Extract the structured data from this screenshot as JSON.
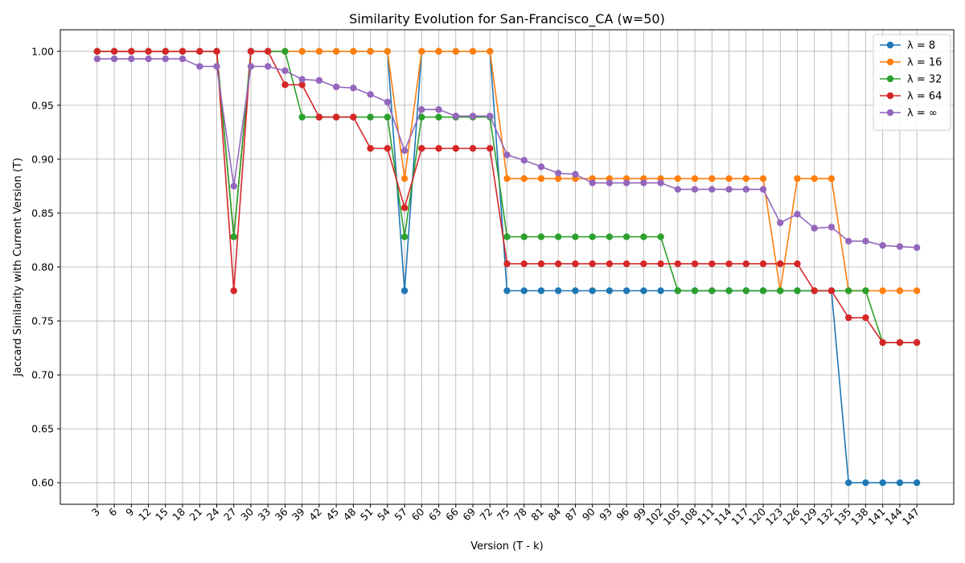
{
  "chart_data": {
    "type": "line",
    "title": "Similarity Evolution for San-Francisco_CA (w=50)",
    "xlabel": "Version (T - k)",
    "ylabel": "Jaccard Similarity with Current Version (T)",
    "grid": true,
    "legend_position": "top-right",
    "ylim": [
      0.58,
      1.02
    ],
    "yticks": [
      0.6,
      0.65,
      0.7,
      0.75,
      0.8,
      0.85,
      0.9,
      0.95,
      1.0
    ],
    "x": [
      3,
      6,
      9,
      12,
      15,
      18,
      21,
      24,
      27,
      30,
      33,
      36,
      39,
      42,
      45,
      48,
      51,
      54,
      57,
      60,
      63,
      66,
      69,
      72,
      75,
      78,
      81,
      84,
      87,
      90,
      93,
      96,
      99,
      102,
      105,
      108,
      111,
      114,
      117,
      120,
      123,
      126,
      129,
      132,
      135,
      138,
      141,
      144,
      147
    ],
    "series": [
      {
        "name": "λ = 8",
        "color": "#1f77b4",
        "values": [
          1.0,
          1.0,
          1.0,
          1.0,
          1.0,
          1.0,
          1.0,
          1.0,
          0.828,
          1.0,
          1.0,
          1.0,
          1.0,
          1.0,
          1.0,
          1.0,
          1.0,
          1.0,
          0.778,
          1.0,
          1.0,
          1.0,
          1.0,
          1.0,
          0.778,
          0.778,
          0.778,
          0.778,
          0.778,
          0.778,
          0.778,
          0.778,
          0.778,
          0.778,
          0.778,
          0.778,
          0.778,
          0.778,
          0.778,
          0.778,
          0.778,
          0.778,
          0.778,
          0.778,
          0.6,
          0.6,
          0.6,
          0.6,
          0.6
        ]
      },
      {
        "name": "λ = 16",
        "color": "#ff7f0e",
        "values": [
          1.0,
          1.0,
          1.0,
          1.0,
          1.0,
          1.0,
          1.0,
          1.0,
          0.828,
          1.0,
          1.0,
          1.0,
          1.0,
          1.0,
          1.0,
          1.0,
          1.0,
          1.0,
          0.882,
          1.0,
          1.0,
          1.0,
          1.0,
          1.0,
          0.882,
          0.882,
          0.882,
          0.882,
          0.882,
          0.882,
          0.882,
          0.882,
          0.882,
          0.882,
          0.882,
          0.882,
          0.882,
          0.882,
          0.882,
          0.882,
          0.778,
          0.882,
          0.882,
          0.882,
          0.778,
          0.778,
          0.778,
          0.778,
          0.778
        ]
      },
      {
        "name": "λ = 32",
        "color": "#2ca02c",
        "values": [
          1.0,
          1.0,
          1.0,
          1.0,
          1.0,
          1.0,
          1.0,
          1.0,
          0.828,
          1.0,
          1.0,
          1.0,
          0.939,
          0.939,
          0.939,
          0.939,
          0.939,
          0.939,
          0.828,
          0.939,
          0.939,
          0.939,
          0.939,
          0.939,
          0.828,
          0.828,
          0.828,
          0.828,
          0.828,
          0.828,
          0.828,
          0.828,
          0.828,
          0.828,
          0.778,
          0.778,
          0.778,
          0.778,
          0.778,
          0.778,
          0.778,
          0.778,
          0.778,
          0.778,
          0.778,
          0.778,
          0.73,
          0.73,
          0.73
        ]
      },
      {
        "name": "λ = 64",
        "color": "#d62728",
        "values": [
          1.0,
          1.0,
          1.0,
          1.0,
          1.0,
          1.0,
          1.0,
          1.0,
          0.778,
          1.0,
          1.0,
          0.969,
          0.969,
          0.939,
          0.939,
          0.939,
          0.91,
          0.91,
          0.855,
          0.91,
          0.91,
          0.91,
          0.91,
          0.91,
          0.803,
          0.803,
          0.803,
          0.803,
          0.803,
          0.803,
          0.803,
          0.803,
          0.803,
          0.803,
          0.803,
          0.803,
          0.803,
          0.803,
          0.803,
          0.803,
          0.803,
          0.803,
          0.778,
          0.778,
          0.753,
          0.753,
          0.73,
          0.73,
          0.73
        ]
      },
      {
        "name": "λ = ∞",
        "color": "#9467bd",
        "values": [
          0.993,
          0.993,
          0.993,
          0.993,
          0.993,
          0.993,
          0.986,
          0.986,
          0.875,
          0.986,
          0.986,
          0.982,
          0.974,
          0.973,
          0.967,
          0.966,
          0.96,
          0.953,
          0.908,
          0.946,
          0.946,
          0.94,
          0.94,
          0.94,
          0.904,
          0.899,
          0.893,
          0.887,
          0.886,
          0.878,
          0.878,
          0.878,
          0.878,
          0.878,
          0.872,
          0.872,
          0.872,
          0.872,
          0.872,
          0.872,
          0.841,
          0.849,
          0.836,
          0.837,
          0.824,
          0.824,
          0.82,
          0.819,
          0.818
        ]
      }
    ]
  }
}
